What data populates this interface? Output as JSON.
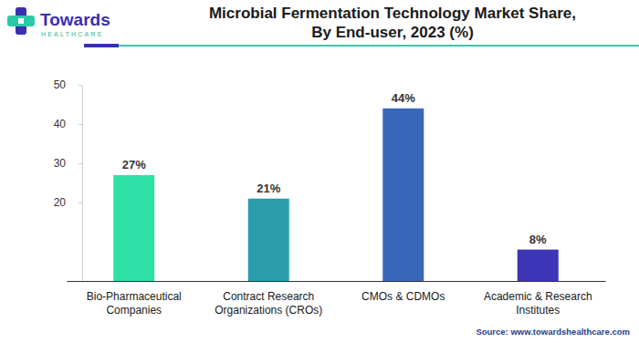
{
  "chart_data": {
    "type": "bar",
    "title": [
      "Microbial Fermentation Technology Market Share,",
      "By End-user, 2023 (%)"
    ],
    "categories": [
      "Bio-Pharmaceutical Companies",
      "Contract Research Organizations (CROs)",
      "CMOs & CDMOs",
      "Academic & Research Institutes"
    ],
    "values": [
      27,
      21,
      44,
      8
    ],
    "value_labels": [
      "27%",
      "21%",
      "44%",
      "8%"
    ],
    "data_labels": true,
    "colors": [
      "#2ee0a6",
      "#2a9dab",
      "#3a68b8",
      "#3c35b5"
    ],
    "ylim": [
      0,
      50
    ],
    "yticks": [
      20,
      30,
      40,
      50
    ],
    "grid": false,
    "annotations": [
      "Towards",
      "HEALTHCARE",
      "Source: www.towardshealthcare.com"
    ]
  }
}
